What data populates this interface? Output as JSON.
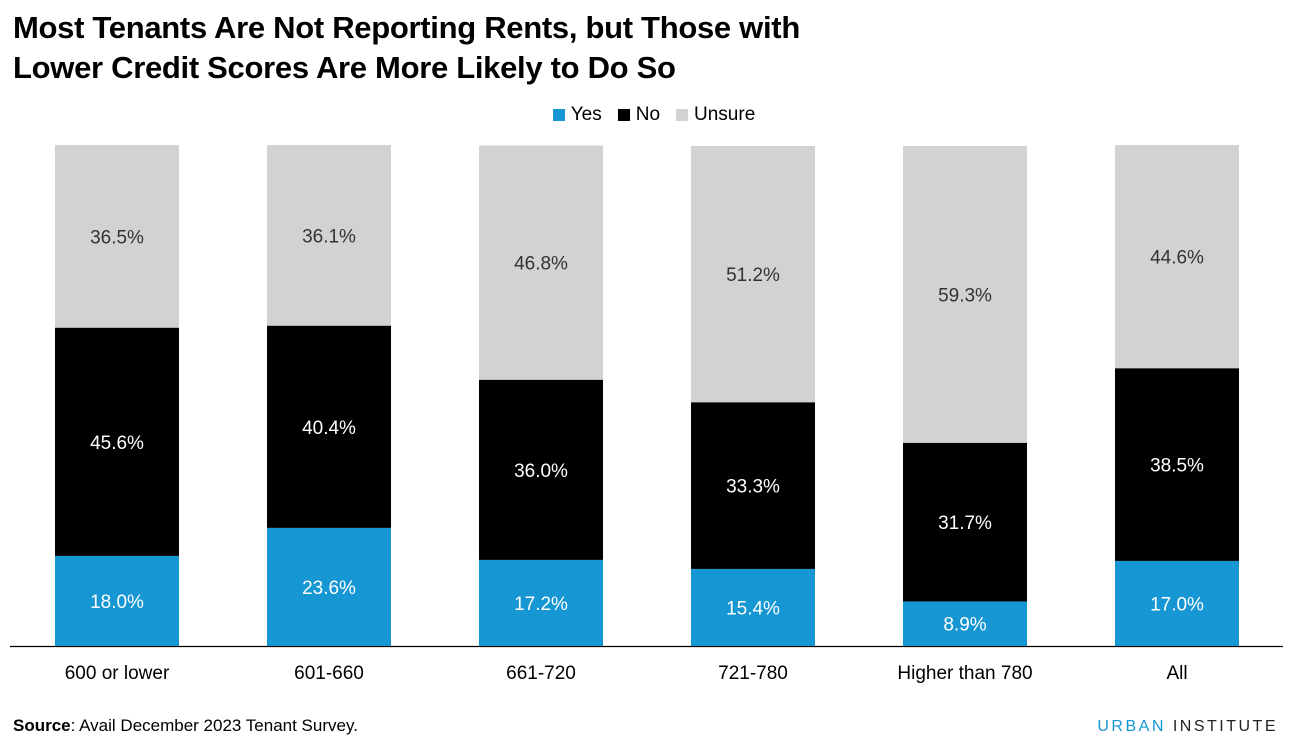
{
  "title_line1": "Most Tenants Are Not Reporting Rents, but Those with",
  "title_line2": "Lower Credit Scores Are More Likely to Do So",
  "source_label": "Source",
  "source_text": ": Avail December 2023 Tenant Survey.",
  "logo_part1": "URBAN",
  "logo_part2": "INSTITUTE",
  "colors": {
    "yes": "#1696d2",
    "no": "#000000",
    "unsure": "#d2d2d2",
    "label_dark": "#333333",
    "label_light": "#ffffff"
  },
  "chart_data": {
    "type": "bar",
    "stacked": true,
    "categories": [
      "600 or lower",
      "601-660",
      "661-720",
      "721-780",
      "Higher than 780",
      "All"
    ],
    "series": [
      {
        "name": "Yes",
        "values": [
          18.0,
          23.6,
          17.2,
          15.4,
          8.9,
          17.0
        ],
        "labels": [
          "18.0%",
          "23.6%",
          "17.2%",
          "15.4%",
          "8.9%",
          "17.0%"
        ]
      },
      {
        "name": "No",
        "values": [
          45.6,
          40.4,
          36.0,
          33.3,
          31.7,
          38.5
        ],
        "labels": [
          "45.6%",
          "40.4%",
          "36.0%",
          "33.3%",
          "31.7%",
          "38.5%"
        ]
      },
      {
        "name": "Unsure",
        "values": [
          36.5,
          36.1,
          46.8,
          51.2,
          59.3,
          44.6
        ],
        "labels": [
          "36.5%",
          "36.1%",
          "46.8%",
          "51.2%",
          "59.3%",
          "44.6%"
        ]
      }
    ],
    "ylim": [
      0,
      100
    ],
    "legend_position": "top-center",
    "grid": false
  }
}
